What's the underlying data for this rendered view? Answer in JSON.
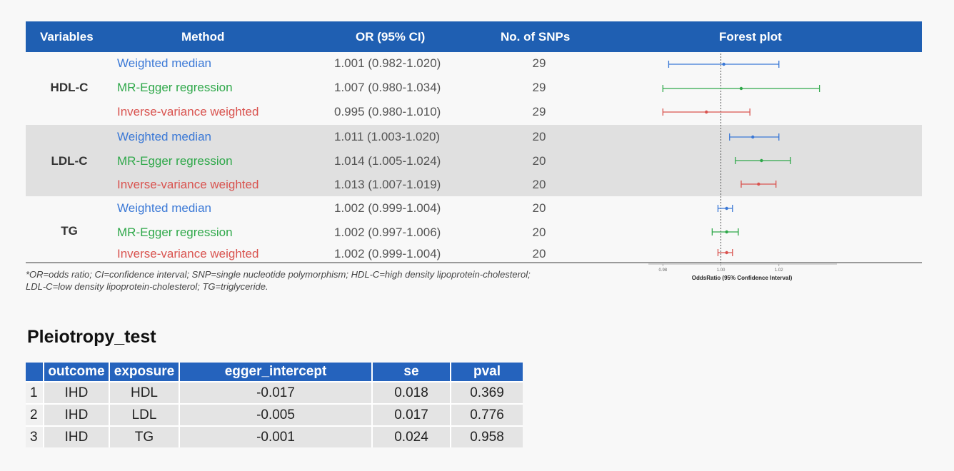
{
  "main_table": {
    "headers": {
      "variables": "Variables",
      "method": "Method",
      "or": "OR (95% CI)",
      "snps": "No. of SNPs",
      "forest": "Forest plot"
    },
    "groups": [
      {
        "variable": "HDL-C",
        "rows": [
          {
            "method": "Weighted median",
            "or": "1.001 (0.982-1.020)",
            "snps": "29"
          },
          {
            "method": "MR-Egger regression",
            "or": "1.007 (0.980-1.034)",
            "snps": "29"
          },
          {
            "method": "Inverse-variance weighted",
            "or": "0.995 (0.980-1.010)",
            "snps": "29"
          }
        ]
      },
      {
        "variable": "LDL-C",
        "rows": [
          {
            "method": "Weighted median",
            "or": "1.011 (1.003-1.020)",
            "snps": "20"
          },
          {
            "method": "MR-Egger regression",
            "or": "1.014 (1.005-1.024)",
            "snps": "20"
          },
          {
            "method": "Inverse-variance weighted",
            "or": "1.013 (1.007-1.019)",
            "snps": "20"
          }
        ]
      },
      {
        "variable": "TG",
        "rows": [
          {
            "method": "Weighted median",
            "or": "1.002 (0.999-1.004)",
            "snps": "20"
          },
          {
            "method": "MR-Egger regression",
            "or": "1.002 (0.997-1.006)",
            "snps": "20"
          },
          {
            "method": "Inverse-variance weighted",
            "or": "1.002 (0.999-1.004)",
            "snps": "20"
          }
        ]
      }
    ],
    "footnote_line1": "*OR=odds ratio; CI=confidence interval; SNP=single nucleotide polymorphism; HDL-C=high density lipoprotein-cholesterol;",
    "footnote_line2": "LDL-C=low density lipoprotein-cholesterol; TG=triglyceride."
  },
  "chart_data": {
    "type": "scatter",
    "title": "Forest plot",
    "xlabel": "OddsRatio (95% Confidence Interval)",
    "xlim": [
      0.975,
      1.04
    ],
    "reference_line": 1.0,
    "ticks": [
      {
        "value": 0.98,
        "label": "0.98"
      },
      {
        "value": 1.0,
        "label": "1.00"
      },
      {
        "value": 1.02,
        "label": "1.02"
      }
    ],
    "method_colors": {
      "Weighted median": "#3a78d6",
      "MR-Egger regression": "#2fa84a",
      "Inverse-variance weighted": "#d9534f"
    },
    "points": [
      {
        "group": "HDL-C",
        "method": "Weighted median",
        "or": 1.001,
        "lower": 0.982,
        "upper": 1.02
      },
      {
        "group": "HDL-C",
        "method": "MR-Egger regression",
        "or": 1.007,
        "lower": 0.98,
        "upper": 1.034
      },
      {
        "group": "HDL-C",
        "method": "Inverse-variance weighted",
        "or": 0.995,
        "lower": 0.98,
        "upper": 1.01
      },
      {
        "group": "LDL-C",
        "method": "Weighted median",
        "or": 1.011,
        "lower": 1.003,
        "upper": 1.02
      },
      {
        "group": "LDL-C",
        "method": "MR-Egger regression",
        "or": 1.014,
        "lower": 1.005,
        "upper": 1.024
      },
      {
        "group": "LDL-C",
        "method": "Inverse-variance weighted",
        "or": 1.013,
        "lower": 1.007,
        "upper": 1.019
      },
      {
        "group": "TG",
        "method": "Weighted median",
        "or": 1.002,
        "lower": 0.999,
        "upper": 1.004
      },
      {
        "group": "TG",
        "method": "MR-Egger regression",
        "or": 1.002,
        "lower": 0.997,
        "upper": 1.006
      },
      {
        "group": "TG",
        "method": "Inverse-variance weighted",
        "or": 1.002,
        "lower": 0.999,
        "upper": 1.004
      }
    ]
  },
  "pleiotropy": {
    "title": "Pleiotropy_test",
    "headers": [
      "",
      "outcome",
      "exposure",
      "egger_intercept",
      "se",
      "pval"
    ],
    "rows": [
      [
        "1",
        "IHD",
        "HDL",
        "-0.017",
        "0.018",
        "0.369"
      ],
      [
        "2",
        "IHD",
        "LDL",
        "-0.005",
        "0.017",
        "0.776"
      ],
      [
        "3",
        "IHD",
        "TG",
        "-0.001",
        "0.024",
        "0.958"
      ]
    ]
  }
}
